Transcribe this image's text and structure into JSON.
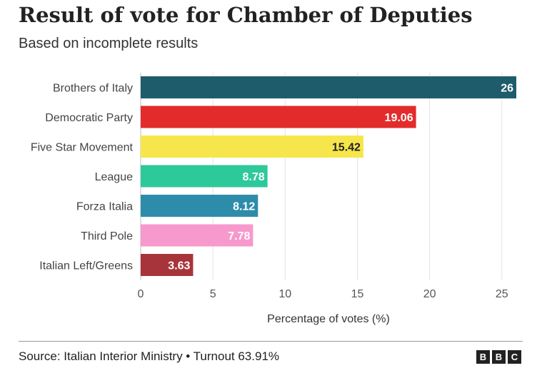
{
  "header": {
    "title": "Result of vote for Chamber of Deputies",
    "subtitle": "Based on incomplete results"
  },
  "chart_data": {
    "type": "bar",
    "orientation": "horizontal",
    "categories": [
      "Brothers of Italy",
      "Democratic Party",
      "Five Star Movement",
      "League",
      "Forza Italia",
      "Third Pole",
      "Italian Left/Greens"
    ],
    "values": [
      26,
      19.06,
      15.42,
      8.78,
      8.12,
      7.78,
      3.63
    ],
    "value_labels": [
      "26",
      "19.06",
      "15.42",
      "8.78",
      "8.12",
      "7.78",
      "3.63"
    ],
    "colors": [
      "#1e5c6b",
      "#e32b2b",
      "#f7e64b",
      "#2ec99a",
      "#2e8cab",
      "#f799cd",
      "#a8343b"
    ],
    "label_colors": [
      "#ffffff",
      "#ffffff",
      "#222222",
      "#ffffff",
      "#ffffff",
      "#ffffff",
      "#ffffff"
    ],
    "xlabel": "Percentage of votes (%)",
    "xlim": [
      0,
      26
    ],
    "xticks": [
      0,
      5,
      10,
      15,
      20,
      25
    ],
    "grid": true
  },
  "footer": {
    "source": "Source: Italian Interior Ministry • Turnout 63.91%",
    "logo_letters": [
      "B",
      "B",
      "C"
    ]
  }
}
